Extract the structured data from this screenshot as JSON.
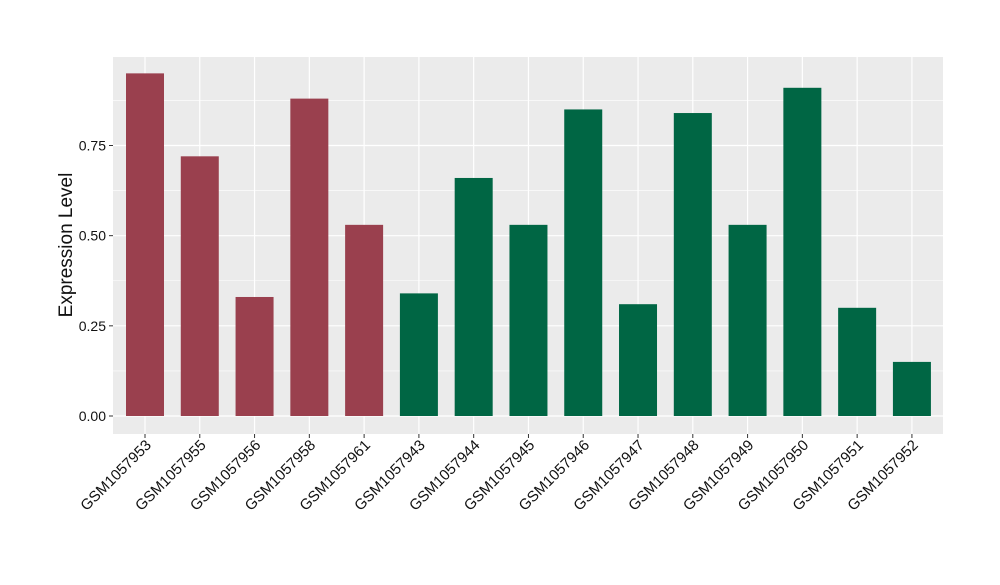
{
  "chart_data": {
    "type": "bar",
    "title": "",
    "xlabel": "",
    "ylabel": "Expression Level",
    "ylim": [
      -0.04,
      1.0
    ],
    "yticks": [
      0.0,
      0.25,
      0.5,
      0.75
    ],
    "ytick_labels": [
      "0.00",
      "0.25",
      "0.50",
      "0.75"
    ],
    "grid": true,
    "legend": "none",
    "colors": {
      "panel_background": "#EBEBEB",
      "grid_major": "#FFFFFF",
      "group_a": "#9A404E",
      "group_b": "#006644",
      "axis_text": "#111111"
    },
    "categories": [
      "GSM1057953",
      "GSM1057955",
      "GSM1057956",
      "GSM1057958",
      "GSM1057961",
      "GSM1057943",
      "GSM1057944",
      "GSM1057945",
      "GSM1057946",
      "GSM1057947",
      "GSM1057948",
      "GSM1057949",
      "GSM1057950",
      "GSM1057951",
      "GSM1057952"
    ],
    "values": [
      0.95,
      0.72,
      0.33,
      0.88,
      0.53,
      0.34,
      0.66,
      0.53,
      0.85,
      0.31,
      0.84,
      0.53,
      0.91,
      0.3,
      0.15
    ],
    "bar_groups": [
      "a",
      "a",
      "a",
      "a",
      "a",
      "b",
      "b",
      "b",
      "b",
      "b",
      "b",
      "b",
      "b",
      "b",
      "b"
    ]
  }
}
